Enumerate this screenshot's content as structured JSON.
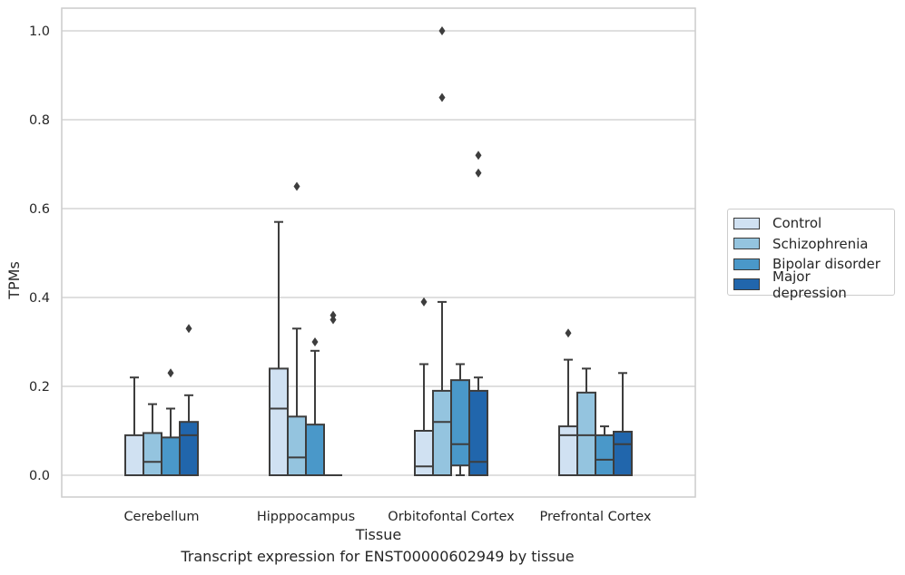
{
  "chart_data": {
    "type": "boxplot",
    "xlabel": "Tissue",
    "ylabel": "TPMs",
    "ylim": [
      -0.048,
      1.05
    ],
    "yticks": [
      0.0,
      0.2,
      0.4,
      0.6,
      0.8,
      1.0
    ],
    "ytick_labels": [
      "0.0",
      "0.2",
      "0.4",
      "0.6",
      "0.8",
      "1.0"
    ],
    "grid": "horizontal",
    "legend_placement": "right",
    "categories": [
      "Cerebellum",
      "Hipppocampus",
      "Orbitofontal Cortex",
      "Prefrontal Cortex"
    ],
    "series": [
      {
        "name": "Control",
        "color": "#d0e1f2",
        "boxes": [
          {
            "whislo": 0.0,
            "q1": 0.0,
            "med": 0.0,
            "q3": 0.09,
            "whishi": 0.22,
            "fliers": []
          },
          {
            "whislo": 0.0,
            "q1": 0.0,
            "med": 0.15,
            "q3": 0.24,
            "whishi": 0.57,
            "fliers": []
          },
          {
            "whislo": 0.0,
            "q1": 0.0,
            "med": 0.02,
            "q3": 0.1,
            "whishi": 0.25,
            "fliers": [
              0.39
            ]
          },
          {
            "whislo": 0.0,
            "q1": 0.0,
            "med": 0.09,
            "q3": 0.11,
            "whishi": 0.26,
            "fliers": [
              0.32
            ]
          }
        ]
      },
      {
        "name": "Schizophrenia",
        "color": "#94c4df",
        "boxes": [
          {
            "whislo": 0.0,
            "q1": 0.0,
            "med": 0.03,
            "q3": 0.095,
            "whishi": 0.16,
            "fliers": []
          },
          {
            "whislo": 0.0,
            "q1": 0.0,
            "med": 0.04,
            "q3": 0.132,
            "whishi": 0.33,
            "fliers": [
              0.65
            ]
          },
          {
            "whislo": 0.0,
            "q1": 0.0,
            "med": 0.12,
            "q3": 0.19,
            "whishi": 0.39,
            "fliers": [
              0.85,
              1.0
            ]
          },
          {
            "whislo": 0.0,
            "q1": 0.0,
            "med": 0.09,
            "q3": 0.186,
            "whishi": 0.24,
            "fliers": []
          }
        ]
      },
      {
        "name": "Bipolar disorder",
        "color": "#4a98c9",
        "boxes": [
          {
            "whislo": 0.0,
            "q1": 0.0,
            "med": 0.0,
            "q3": 0.085,
            "whishi": 0.15,
            "fliers": [
              0.23
            ]
          },
          {
            "whislo": 0.0,
            "q1": 0.0,
            "med": 0.0,
            "q3": 0.114,
            "whishi": 0.28,
            "fliers": [
              0.3
            ]
          },
          {
            "whislo": 0.0,
            "q1": 0.022,
            "med": 0.07,
            "q3": 0.214,
            "whishi": 0.25,
            "fliers": []
          },
          {
            "whislo": 0.0,
            "q1": 0.0,
            "med": 0.035,
            "q3": 0.09,
            "whishi": 0.11,
            "fliers": []
          }
        ]
      },
      {
        "name": "Major depression",
        "color": "#2166ac",
        "boxes": [
          {
            "whislo": 0.0,
            "q1": 0.0,
            "med": 0.09,
            "q3": 0.12,
            "whishi": 0.18,
            "fliers": [
              0.33
            ]
          },
          {
            "whislo": 0.0,
            "q1": 0.0,
            "med": 0.0,
            "q3": 0.0,
            "whishi": 0.0,
            "fliers": [
              0.35,
              0.36
            ]
          },
          {
            "whislo": 0.0,
            "q1": 0.0,
            "med": 0.03,
            "q3": 0.19,
            "whishi": 0.22,
            "fliers": [
              0.68,
              0.72
            ]
          },
          {
            "whislo": 0.0,
            "q1": 0.0,
            "med": 0.07,
            "q3": 0.098,
            "whishi": 0.23,
            "fliers": []
          }
        ]
      }
    ]
  },
  "caption": "Transcript expression for ENST00000602949 by tissue"
}
